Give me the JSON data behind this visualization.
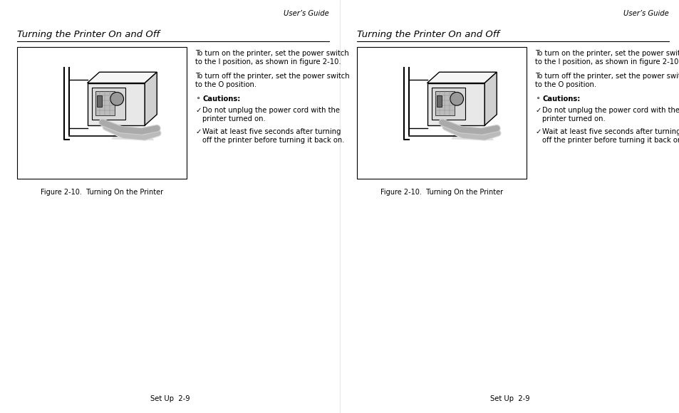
{
  "bg_color": "#ffffff",
  "header_text": "User’s Guide",
  "footer_text": "Set Up  2-9",
  "section_title": "Turning the Printer On and Off",
  "para1_line1": "To turn on the printer, set the power switch",
  "para1_line2": "to the I position, as shown in figure 2-10.",
  "para2_line1": "To turn off the printer, set the power switch",
  "para2_line2": "to the O position.",
  "caution_label": "Cautions:",
  "bullet1_line1": "Do not unplug the power cord with the",
  "bullet1_line2": "printer turned on.",
  "bullet2_line1": "Wait at least five seconds after turning",
  "bullet2_line2": "off the printer before turning it back on.",
  "figure_caption": "Figure 2-10.  Turning On the Printer",
  "text_color": "#000000",
  "gray_color": "#aaaaaa",
  "light_gray": "#cccccc",
  "mid_gray": "#999999",
  "dark_gray": "#555555",
  "title_font_size": 9.5,
  "body_font_size": 7.2,
  "header_font_size": 7.2,
  "footer_font_size": 7.2,
  "caption_font_size": 7.0,
  "page_width": 9.54,
  "page_height": 5.8
}
